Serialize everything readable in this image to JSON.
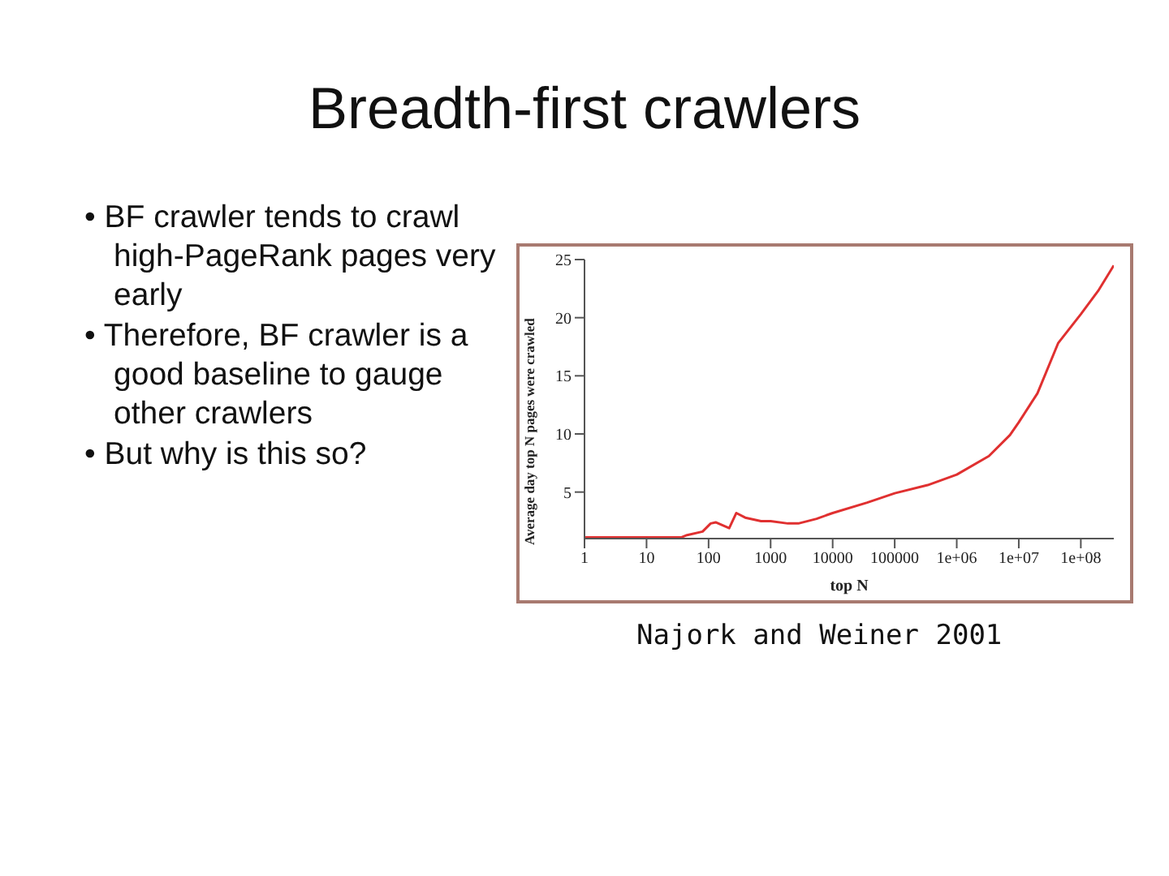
{
  "chart_data": {
    "type": "line",
    "title": "Breadth-first crawlers",
    "xlabel": "top N",
    "ylabel": "Average day top N pages were crawled",
    "annotations": [
      "• BF crawler tends to crawl high-PageRank pages very early",
      "• Therefore, BF crawler is a good baseline to gauge other crawlers",
      "• But why is this so?",
      "Najork and Weiner 2001"
    ],
    "x": [
      1,
      10,
      36,
      45,
      80,
      108,
      130,
      215,
      280,
      390,
      700,
      1000,
      1900,
      2800,
      5500,
      10000,
      36000,
      100000,
      340000,
      1000000,
      3300000,
      7200000,
      10000000,
      20000000,
      43000000,
      100000000,
      190000000,
      340000000
    ],
    "series": [
      {
        "color": "#e03030",
        "values": [
          1.1,
          1.1,
          1.1,
          1.3,
          1.6,
          2.3,
          2.4,
          1.9,
          3.2,
          2.8,
          2.5,
          2.5,
          2.3,
          2.3,
          2.7,
          3.2,
          4.1,
          4.9,
          5.6,
          6.5,
          8.1,
          9.9,
          11.0,
          13.5,
          17.8,
          20.3,
          22.3,
          24.5
        ]
      }
    ],
    "log": "x",
    "xlim": [
      1,
      340000000
    ],
    "ylim": [
      1,
      25
    ],
    "xticks": [
      1,
      10,
      100,
      1000,
      10000,
      100000,
      {
        "value": 1000000,
        "label": "1e+06"
      },
      {
        "value": 10000000,
        "label": "1e+07"
      },
      {
        "value": 100000000,
        "label": "1e+08"
      }
    ],
    "yticks": [
      5,
      10,
      15,
      20,
      25
    ],
    "grid": false,
    "legend": false,
    "marker": "none",
    "line_style": "solid"
  }
}
